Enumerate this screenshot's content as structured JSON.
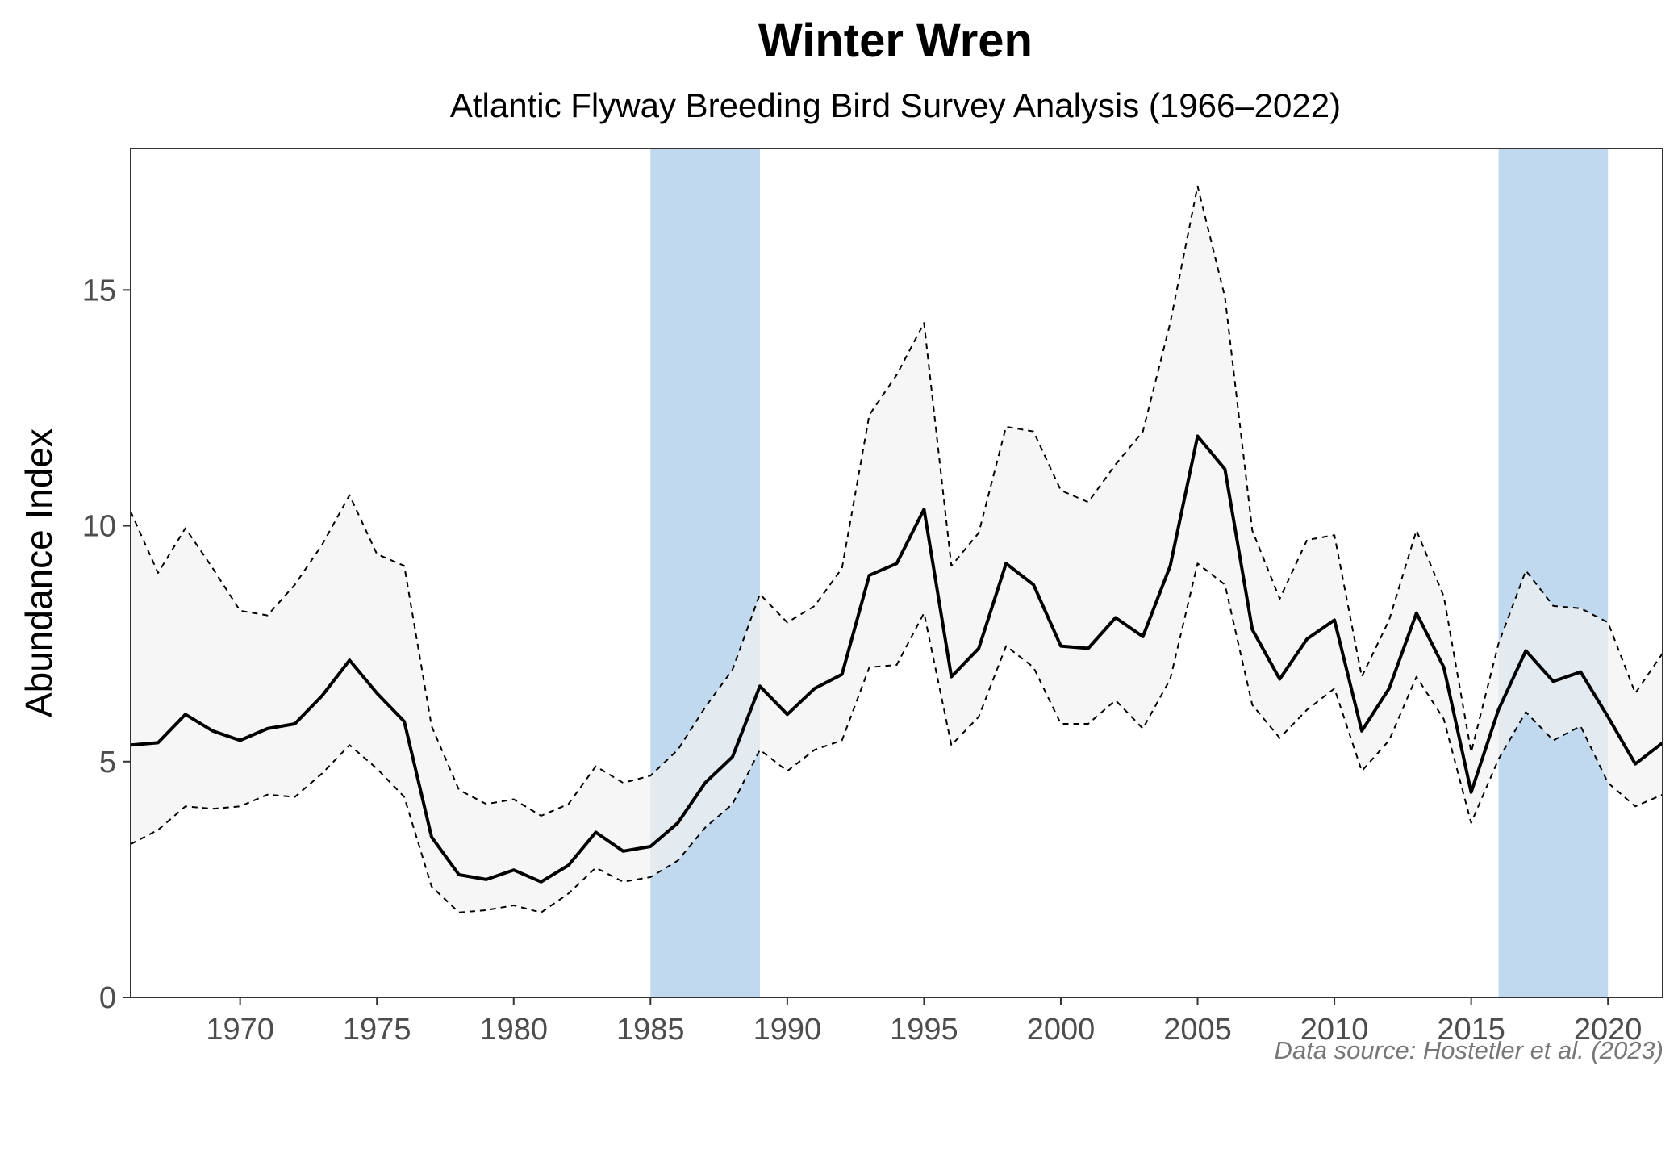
{
  "chart_data": {
    "type": "line",
    "title": "Winter Wren",
    "subtitle": "Atlantic Flyway Breeding Bird Survey Analysis (1966–2022)",
    "xlabel": "",
    "ylabel": "Abundance Index",
    "caption": "Data source: Hostetler et al. (2023)",
    "xlim": [
      1966,
      2022
    ],
    "ylim": [
      0,
      18
    ],
    "x_ticks": [
      1970,
      1975,
      1980,
      1985,
      1990,
      1995,
      2000,
      2005,
      2010,
      2015,
      2020
    ],
    "y_ticks": [
      0,
      5,
      10,
      15
    ],
    "x_tick_labels": [
      "1970",
      "1975",
      "1980",
      "1985",
      "1990",
      "1995",
      "2000",
      "2005",
      "2010",
      "2015",
      "2020"
    ],
    "y_tick_labels": [
      "0",
      "5",
      "10",
      "15"
    ],
    "grid": false,
    "highlight_periods": [
      [
        1985,
        1989
      ],
      [
        2016,
        2020
      ]
    ],
    "x": [
      1966,
      1967,
      1968,
      1969,
      1970,
      1971,
      1972,
      1973,
      1974,
      1975,
      1976,
      1977,
      1978,
      1979,
      1980,
      1981,
      1982,
      1983,
      1984,
      1985,
      1986,
      1987,
      1988,
      1989,
      1990,
      1991,
      1992,
      1993,
      1994,
      1995,
      1996,
      1997,
      1998,
      1999,
      2000,
      2001,
      2002,
      2003,
      2004,
      2005,
      2006,
      2007,
      2008,
      2009,
      2010,
      2011,
      2012,
      2013,
      2014,
      2015,
      2016,
      2017,
      2018,
      2019,
      2020,
      2021,
      2022
    ],
    "series": [
      {
        "name": "Abundance Index",
        "style": "solid",
        "values": [
          5.35,
          5.4,
          6.0,
          5.65,
          5.45,
          5.7,
          5.8,
          6.4,
          7.15,
          6.45,
          5.85,
          3.4,
          2.6,
          2.5,
          2.7,
          2.45,
          2.8,
          3.5,
          3.1,
          3.2,
          3.7,
          4.55,
          5.1,
          6.6,
          6.0,
          6.55,
          6.85,
          8.95,
          9.2,
          10.35,
          6.8,
          7.4,
          9.2,
          8.75,
          7.45,
          7.4,
          8.05,
          7.65,
          9.15,
          11.9,
          11.2,
          7.8,
          6.75,
          7.6,
          8.0,
          5.65,
          6.55,
          8.15,
          7.0,
          4.35,
          6.1,
          7.35,
          6.7,
          6.9,
          5.95,
          4.95,
          5.4
        ]
      },
      {
        "name": "Upper credible limit",
        "style": "dashed",
        "values": [
          10.3,
          9.0,
          9.95,
          9.1,
          8.2,
          8.1,
          8.75,
          9.6,
          10.65,
          9.4,
          9.15,
          5.75,
          4.4,
          4.1,
          4.2,
          3.85,
          4.1,
          4.9,
          4.55,
          4.7,
          5.25,
          6.15,
          6.95,
          8.55,
          7.95,
          8.3,
          9.1,
          12.35,
          13.2,
          14.3,
          9.15,
          9.85,
          12.1,
          12.0,
          10.75,
          10.5,
          11.3,
          12.0,
          14.3,
          17.2,
          14.85,
          9.9,
          8.45,
          9.7,
          9.8,
          6.8,
          8.0,
          9.9,
          8.5,
          5.2,
          7.5,
          9.05,
          8.3,
          8.25,
          7.95,
          6.45,
          7.3
        ]
      },
      {
        "name": "Lower credible limit",
        "style": "dashed",
        "values": [
          3.25,
          3.55,
          4.05,
          4.0,
          4.05,
          4.3,
          4.25,
          4.75,
          5.35,
          4.85,
          4.25,
          2.35,
          1.8,
          1.85,
          1.95,
          1.8,
          2.2,
          2.75,
          2.45,
          2.55,
          2.9,
          3.6,
          4.1,
          5.25,
          4.8,
          5.25,
          5.45,
          7.0,
          7.05,
          8.15,
          5.35,
          5.95,
          7.45,
          7.0,
          5.8,
          5.8,
          6.3,
          5.7,
          6.75,
          9.2,
          8.75,
          6.2,
          5.5,
          6.1,
          6.55,
          4.8,
          5.45,
          6.8,
          5.9,
          3.7,
          5.05,
          6.05,
          5.45,
          5.75,
          4.55,
          4.05,
          4.3
        ]
      }
    ]
  },
  "colors": {
    "highlight": "#bdd7ee",
    "ribbon": "#f2f2f2",
    "line": "#000000",
    "axis": "#333333"
  }
}
